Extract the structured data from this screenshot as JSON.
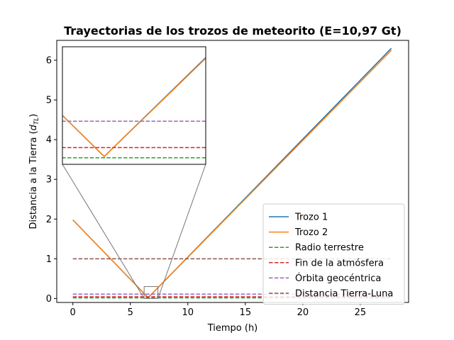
{
  "chart_data": {
    "type": "line",
    "title": "Trayectorias de los trozos de meteorito (E=10,97 Gt)",
    "xlabel": "Tiempo (h)",
    "ylabel": "Distancia a la Tierra (d_TL)",
    "xlim": [
      -1.4,
      29.2
    ],
    "ylim": [
      -0.1,
      6.5
    ],
    "xticks": [
      0,
      5,
      10,
      15,
      20,
      25
    ],
    "yticks": [
      0,
      1,
      2,
      3,
      4,
      5,
      6
    ],
    "grid": false,
    "legend_position": "lower right",
    "series": [
      {
        "name": "Trozo 1",
        "style": "solid",
        "color": "#1f77b4",
        "x": [
          0,
          6.55,
          27.7
        ],
        "y": [
          1.98,
          0.02,
          6.3
        ]
      },
      {
        "name": "Trozo 2",
        "style": "solid",
        "color": "#ff7f0e",
        "x": [
          0,
          6.55,
          27.7
        ],
        "y": [
          1.98,
          0.02,
          6.25
        ]
      },
      {
        "name": "Radio terrestre",
        "style": "dashed",
        "color": "#2ca02c",
        "x": [
          0,
          27.7
        ],
        "y": [
          0.0166,
          0.0166
        ]
      },
      {
        "name": "Fin de la atmósfera",
        "style": "dashed",
        "color": "#d62728",
        "x": [
          0,
          27.7
        ],
        "y": [
          0.0427,
          0.0427
        ]
      },
      {
        "name": "Órbita geocéntrica",
        "style": "dashed",
        "color": "#9467bd",
        "x": [
          0,
          27.7
        ],
        "y": [
          0.11,
          0.11
        ]
      },
      {
        "name": "Distancia Tierra-Luna",
        "style": "dashed",
        "color": "#8c564b",
        "x": [
          0,
          27.7
        ],
        "y": [
          1.0,
          1.0
        ]
      }
    ],
    "inset": {
      "xlim": [
        6.2,
        7.4
      ],
      "ylim": [
        0,
        0.3
      ],
      "series_shown": [
        "Trozo 1",
        "Trozo 2",
        "Radio terrestre",
        "Fin de la atmósfera",
        "Órbita geocéntrica"
      ]
    }
  }
}
